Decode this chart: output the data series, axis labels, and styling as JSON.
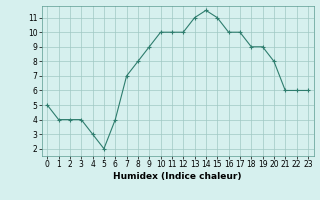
{
  "x": [
    0,
    1,
    2,
    3,
    4,
    5,
    6,
    7,
    8,
    9,
    10,
    11,
    12,
    13,
    14,
    15,
    16,
    17,
    18,
    19,
    20,
    21,
    22,
    23
  ],
  "y": [
    5,
    4,
    4,
    4,
    3,
    2,
    4,
    7,
    8,
    9,
    10,
    10,
    10,
    11,
    11.5,
    11,
    10,
    10,
    9,
    9,
    8,
    6,
    6,
    6
  ],
  "line_color": "#2e7d6e",
  "marker": "+",
  "marker_color": "#2e7d6e",
  "bg_color": "#d6f0ee",
  "grid_color": "#a0c8c4",
  "xlabel": "Humidex (Indice chaleur)",
  "xlim": [
    -0.5,
    23.5
  ],
  "ylim": [
    1.5,
    11.8
  ],
  "yticks": [
    2,
    3,
    4,
    5,
    6,
    7,
    8,
    9,
    10,
    11
  ],
  "xticks": [
    0,
    1,
    2,
    3,
    4,
    5,
    6,
    7,
    8,
    9,
    10,
    11,
    12,
    13,
    14,
    15,
    16,
    17,
    18,
    19,
    20,
    21,
    22,
    23
  ],
  "label_fontsize": 6.5,
  "tick_fontsize": 5.5
}
